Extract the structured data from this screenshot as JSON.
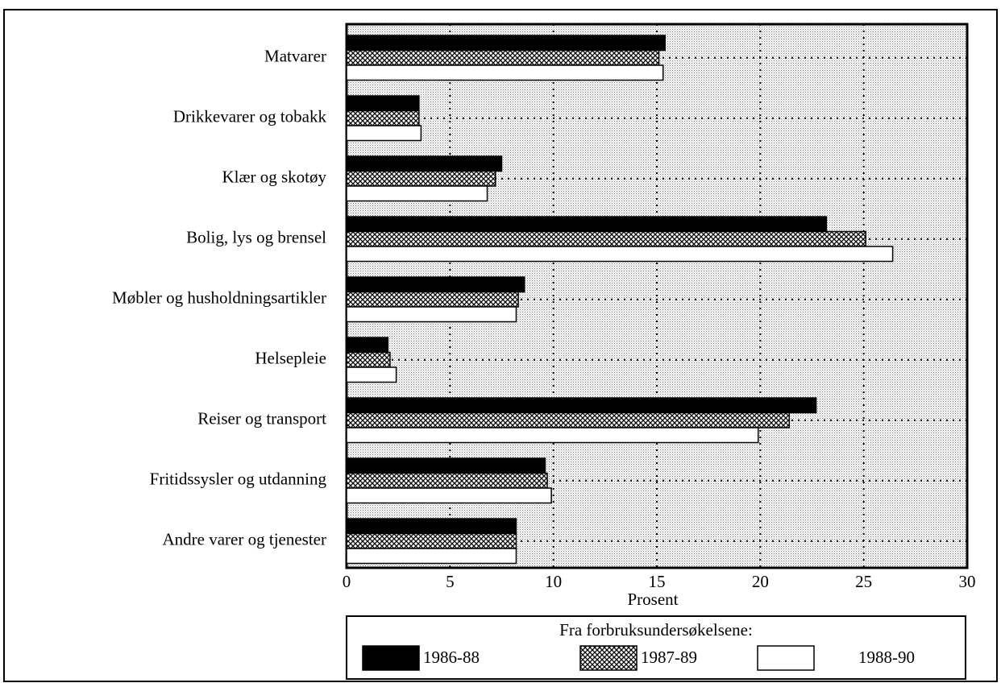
{
  "chart_data": {
    "type": "bar",
    "orientation": "horizontal",
    "categories": [
      "Matvarer",
      "Drikkevarer og tobakk",
      "Klær og skotøy",
      "Bolig, lys og brensel",
      "Møbler og husholdningsartikler",
      "Helsepleie",
      "Reiser og transport",
      "Fritidssysler og utdanning",
      "Andre varer og tjenester"
    ],
    "series": [
      {
        "name": "1986-88",
        "color": "#000000",
        "values": [
          15.4,
          3.5,
          7.5,
          23.2,
          8.6,
          2.0,
          22.7,
          9.6,
          8.2
        ]
      },
      {
        "name": "1987-89",
        "color": "#000000",
        "pattern": "crosshatch",
        "values": [
          15.1,
          3.5,
          7.2,
          25.1,
          8.3,
          2.1,
          21.4,
          9.7,
          8.2
        ]
      },
      {
        "name": "1988-90",
        "color": "#ffffff",
        "values": [
          15.3,
          3.6,
          6.8,
          26.4,
          8.2,
          2.4,
          19.9,
          9.9,
          8.2
        ]
      }
    ],
    "xlim": [
      0,
      30
    ],
    "xticks": [
      0,
      5,
      10,
      15,
      20,
      25,
      30
    ],
    "xlabel": "Prosent",
    "legend_title": "Fra forbruksundersøkelsene:",
    "grid": true
  }
}
